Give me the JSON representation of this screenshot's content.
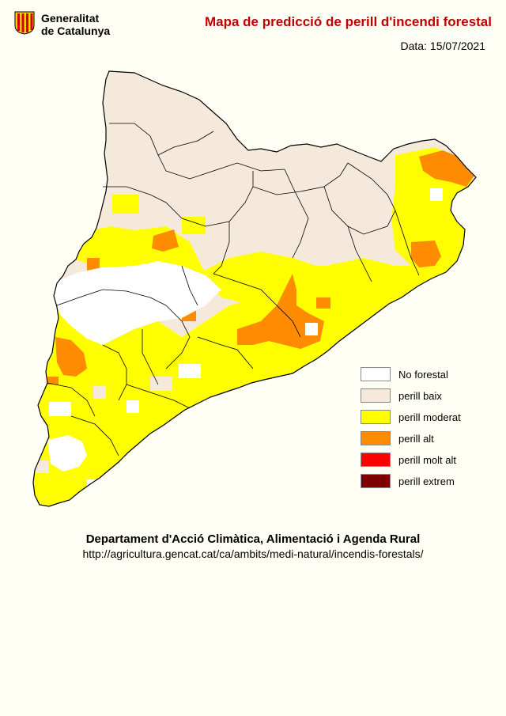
{
  "header": {
    "logo_line1": "Generalitat",
    "logo_line2": "de Catalunya",
    "title": "Mapa de predicció de perill d'incendi forestal",
    "date_label": "Data:",
    "date_value": "15/07/2021"
  },
  "legend": {
    "items": [
      {
        "label": "No forestal",
        "color": "#ffffff"
      },
      {
        "label": "perill baix",
        "color": "#f5e9dc"
      },
      {
        "label": "perill moderat",
        "color": "#ffff00"
      },
      {
        "label": "perill alt",
        "color": "#ff8c00"
      },
      {
        "label": "perill molt alt",
        "color": "#ff0000"
      },
      {
        "label": "perill extrem",
        "color": "#800000"
      }
    ]
  },
  "footer": {
    "department": "Departament d'Acció Climàtica, Alimentació i Agenda Rural",
    "url": "http://agricultura.gencat.cat/ca/ambits/medi-natural/incendis-forestals/"
  },
  "colors": {
    "title": "#c00000",
    "background": "#fffff6",
    "border": "#000000"
  }
}
